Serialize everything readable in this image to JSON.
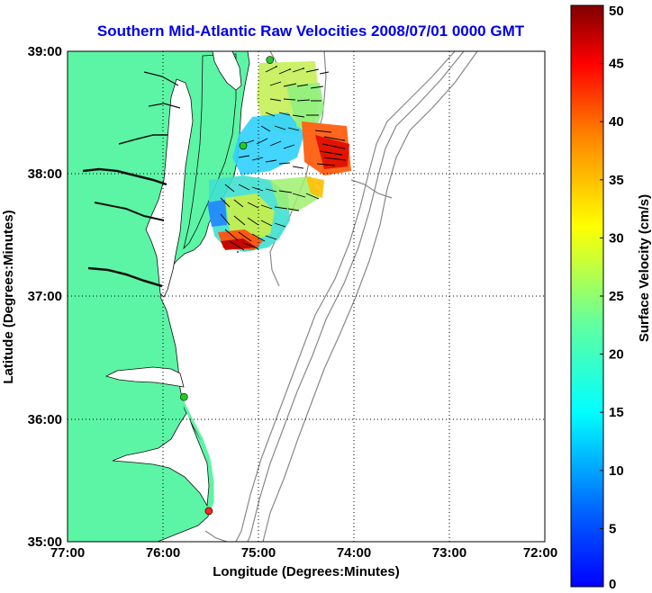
{
  "title": "Southern Mid-Atlantic Raw Velocities 2008/07/01 0000 GMT",
  "map": {
    "xlabel": "Longitude (Degrees:Minutes)",
    "ylabel": "Latitude (Degrees:Minutes)",
    "x_ticks": [
      "77:00",
      "76:00",
      "75:00",
      "74:00",
      "73:00",
      "72:00"
    ],
    "y_ticks": [
      "39:00",
      "38:00",
      "37:00",
      "36:00",
      "35:00"
    ],
    "lon_range": [
      -77,
      -72
    ],
    "lat_range": [
      35,
      39
    ],
    "land_color": "#5cf5a5",
    "grid": "dotted"
  },
  "colorbar": {
    "label": "Surface Velocity (cm/s)",
    "ticks": [
      "0",
      "5",
      "10",
      "15",
      "20",
      "25",
      "30",
      "35",
      "40",
      "45",
      "50"
    ],
    "range": [
      0,
      50
    ],
    "colormap": "jet"
  },
  "stations": [
    {
      "lon": -74.88,
      "lat": 38.93,
      "color": "#22cc22"
    },
    {
      "lon": -75.16,
      "lat": 38.23,
      "color": "#22cc22"
    },
    {
      "lon": -75.78,
      "lat": 36.18,
      "color": "#22cc22"
    },
    {
      "lon": -75.52,
      "lat": 35.25,
      "color": "#ff2222"
    }
  ]
}
